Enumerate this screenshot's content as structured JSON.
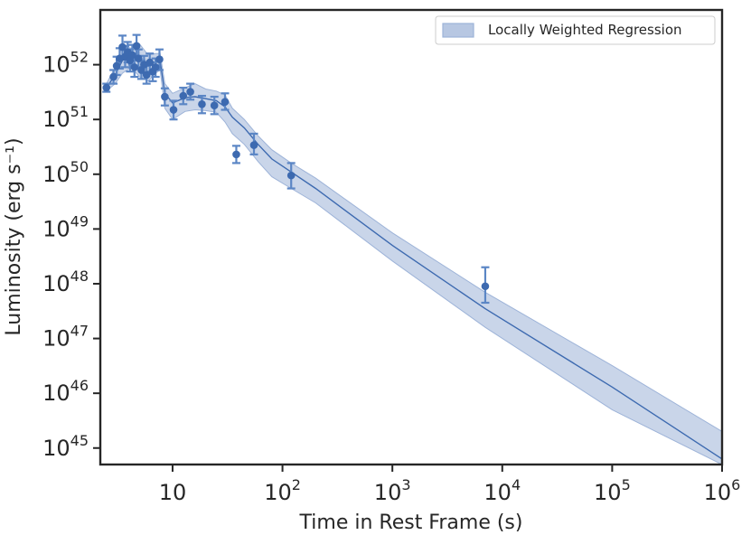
{
  "colors": {
    "line": "#3d6ab0",
    "band": "#b7c7e2",
    "band_edge": "#9db3d8",
    "errorbar": "#5b86c5",
    "axis": "#262626"
  },
  "chart_data": {
    "type": "scatter",
    "xscale": "log",
    "yscale": "log",
    "xlim": [
      2.2,
      1000000
    ],
    "ylim": [
      5e+44,
      1e+53
    ],
    "xlabel": "Time in Rest Frame (s)",
    "ylabel": "Luminosity (erg s⁻¹)",
    "legend": {
      "label": "Locally Weighted Regression",
      "position": "top-right"
    },
    "x_ticks": [
      {
        "value": 10,
        "base": "10",
        "exp": ""
      },
      {
        "value": 100,
        "base": "10",
        "exp": "2"
      },
      {
        "value": 1000,
        "base": "10",
        "exp": "3"
      },
      {
        "value": 10000,
        "base": "10",
        "exp": "4"
      },
      {
        "value": 100000,
        "base": "10",
        "exp": "5"
      },
      {
        "value": 1000000,
        "base": "10",
        "exp": "6"
      }
    ],
    "y_ticks": [
      {
        "value": 1e+45,
        "base": "10",
        "exp": "45"
      },
      {
        "value": 1e+46,
        "base": "10",
        "exp": "46"
      },
      {
        "value": 1e+47,
        "base": "10",
        "exp": "47"
      },
      {
        "value": 1e+48,
        "base": "10",
        "exp": "48"
      },
      {
        "value": 1e+49,
        "base": "10",
        "exp": "49"
      },
      {
        "value": 1e+50,
        "base": "10",
        "exp": "50"
      },
      {
        "value": 1e+51,
        "base": "10",
        "exp": "51"
      },
      {
        "value": 1e+52,
        "base": "10",
        "exp": "52"
      }
    ],
    "points": [
      {
        "x": 2.5,
        "y": 3.8e+51,
        "err_lo": 3.2e+51,
        "err_hi": 4.5e+51
      },
      {
        "x": 2.9,
        "y": 6e+51,
        "err_lo": 4.5e+51,
        "err_hi": 8e+51
      },
      {
        "x": 3.1,
        "y": 9.5e+51,
        "err_lo": 6.5e+51,
        "err_hi": 1.4e+52
      },
      {
        "x": 3.3,
        "y": 1.3e+52,
        "err_lo": 8.5e+51,
        "err_hi": 2e+52
      },
      {
        "x": 3.5,
        "y": 2.1e+52,
        "err_lo": 1.3e+52,
        "err_hi": 3.4e+52
      },
      {
        "x": 3.7,
        "y": 1.4e+52,
        "err_lo": 9e+51,
        "err_hi": 2.2e+52
      },
      {
        "x": 3.9,
        "y": 1.7e+52,
        "err_lo": 1.1e+52,
        "err_hi": 2.6e+52
      },
      {
        "x": 4.1,
        "y": 1.2e+52,
        "err_lo": 7.5e+51,
        "err_hi": 1.9e+52
      },
      {
        "x": 4.3,
        "y": 1.5e+52,
        "err_lo": 1e+52,
        "err_hi": 2.3e+52
      },
      {
        "x": 4.5,
        "y": 9e+51,
        "err_lo": 6e+51,
        "err_hi": 1.35e+52
      },
      {
        "x": 4.7,
        "y": 2.2e+52,
        "err_lo": 1.4e+52,
        "err_hi": 3.5e+52
      },
      {
        "x": 4.9,
        "y": 1.3e+52,
        "err_lo": 9e+51,
        "err_hi": 1.9e+52
      },
      {
        "x": 5.2,
        "y": 8e+51,
        "err_lo": 5.5e+51,
        "err_hi": 1.2e+52
      },
      {
        "x": 5.5,
        "y": 1e+52,
        "err_lo": 7e+51,
        "err_hi": 1.45e+52
      },
      {
        "x": 5.8,
        "y": 6.5e+51,
        "err_lo": 4.5e+51,
        "err_hi": 9.5e+51
      },
      {
        "x": 6.2,
        "y": 1.1e+52,
        "err_lo": 7.5e+51,
        "err_hi": 1.6e+52
      },
      {
        "x": 6.6,
        "y": 7.5e+51,
        "err_lo": 5e+51,
        "err_hi": 1.1e+52
      },
      {
        "x": 7.0,
        "y": 9e+51,
        "err_lo": 6e+51,
        "err_hi": 1.3e+52
      },
      {
        "x": 7.6,
        "y": 1.25e+52,
        "err_lo": 8e+51,
        "err_hi": 1.9e+52
      },
      {
        "x": 8.5,
        "y": 2.6e+51,
        "err_lo": 1.8e+51,
        "err_hi": 3.7e+51
      },
      {
        "x": 10.2,
        "y": 1.5e+51,
        "err_lo": 1e+51,
        "err_hi": 2.2e+51
      },
      {
        "x": 12.5,
        "y": 2.7e+51,
        "err_lo": 1.9e+51,
        "err_hi": 3.8e+51
      },
      {
        "x": 14.5,
        "y": 3.2e+51,
        "err_lo": 2.3e+51,
        "err_hi": 4.5e+51
      },
      {
        "x": 18.5,
        "y": 1.9e+51,
        "err_lo": 1.3e+51,
        "err_hi": 2.7e+51
      },
      {
        "x": 24,
        "y": 1.8e+51,
        "err_lo": 1.25e+51,
        "err_hi": 2.6e+51
      },
      {
        "x": 30,
        "y": 2.1e+51,
        "err_lo": 1.5e+51,
        "err_hi": 3e+51
      },
      {
        "x": 38,
        "y": 2.3e+50,
        "err_lo": 1.6e+50,
        "err_hi": 3.3e+50
      },
      {
        "x": 55,
        "y": 3.4e+50,
        "err_lo": 2.3e+50,
        "err_hi": 5.5e+50
      },
      {
        "x": 120,
        "y": 9.5e+49,
        "err_lo": 5.5e+49,
        "err_hi": 1.6e+50
      },
      {
        "x": 7000,
        "y": 9e+47,
        "err_lo": 4.5e+47,
        "err_hi": 2e+48
      }
    ],
    "fit_line": [
      {
        "x": 2.5,
        "y": 3.8e+51
      },
      {
        "x": 3.0,
        "y": 6.5e+51
      },
      {
        "x": 3.5,
        "y": 1.2e+52
      },
      {
        "x": 4.2,
        "y": 1.4e+52
      },
      {
        "x": 5.0,
        "y": 1.25e+52
      },
      {
        "x": 6.0,
        "y": 1.05e+52
      },
      {
        "x": 7.0,
        "y": 1.1e+52
      },
      {
        "x": 7.7,
        "y": 1.15e+52
      },
      {
        "x": 8.5,
        "y": 3e+51
      },
      {
        "x": 10,
        "y": 2e+51
      },
      {
        "x": 13,
        "y": 2.5e+51
      },
      {
        "x": 16,
        "y": 2.6e+51
      },
      {
        "x": 20,
        "y": 2.4e+51
      },
      {
        "x": 25,
        "y": 2.2e+51
      },
      {
        "x": 30,
        "y": 1.7e+51
      },
      {
        "x": 35,
        "y": 1.1e+51
      },
      {
        "x": 45,
        "y": 7e+50
      },
      {
        "x": 60,
        "y": 3.5e+50
      },
      {
        "x": 80,
        "y": 1.9e+50
      },
      {
        "x": 120,
        "y": 1.1e+50
      },
      {
        "x": 200,
        "y": 5.5e+49
      },
      {
        "x": 1000,
        "y": 5e+48
      },
      {
        "x": 7000,
        "y": 3.5e+47
      },
      {
        "x": 100000,
        "y": 1.3e+46
      },
      {
        "x": 1000000,
        "y": 6.3e+44
      }
    ],
    "band_upper": [
      {
        "x": 2.5,
        "y": 4.5e+51
      },
      {
        "x": 3.0,
        "y": 9e+51
      },
      {
        "x": 3.5,
        "y": 2.2e+52
      },
      {
        "x": 4.2,
        "y": 2e+52
      },
      {
        "x": 5.0,
        "y": 2.4e+52
      },
      {
        "x": 6.0,
        "y": 1.5e+52
      },
      {
        "x": 7.0,
        "y": 1.6e+52
      },
      {
        "x": 7.7,
        "y": 1.6e+52
      },
      {
        "x": 8.5,
        "y": 4.5e+51
      },
      {
        "x": 10,
        "y": 3e+51
      },
      {
        "x": 13,
        "y": 3.8e+51
      },
      {
        "x": 16,
        "y": 4.5e+51
      },
      {
        "x": 20,
        "y": 3.6e+51
      },
      {
        "x": 25,
        "y": 3.3e+51
      },
      {
        "x": 30,
        "y": 2.8e+51
      },
      {
        "x": 35,
        "y": 1.6e+51
      },
      {
        "x": 45,
        "y": 1e+51
      },
      {
        "x": 60,
        "y": 5e+50
      },
      {
        "x": 80,
        "y": 2.8e+50
      },
      {
        "x": 120,
        "y": 1.6e+50
      },
      {
        "x": 200,
        "y": 8.5e+49
      },
      {
        "x": 1000,
        "y": 8.5e+48
      },
      {
        "x": 7000,
        "y": 7e+47
      },
      {
        "x": 100000,
        "y": 3.2e+46
      },
      {
        "x": 1000000,
        "y": 2e+45
      }
    ],
    "band_lower": [
      {
        "x": 2.5,
        "y": 3.3e+51
      },
      {
        "x": 3.0,
        "y": 4.5e+51
      },
      {
        "x": 3.5,
        "y": 7e+51
      },
      {
        "x": 4.2,
        "y": 9e+51
      },
      {
        "x": 5.0,
        "y": 6e+51
      },
      {
        "x": 6.0,
        "y": 5e+51
      },
      {
        "x": 7.0,
        "y": 7e+51
      },
      {
        "x": 7.7,
        "y": 8e+51
      },
      {
        "x": 8.5,
        "y": 1.6e+51
      },
      {
        "x": 10,
        "y": 1e+51
      },
      {
        "x": 13,
        "y": 1.4e+51
      },
      {
        "x": 16,
        "y": 1.5e+51
      },
      {
        "x": 20,
        "y": 1.45e+51
      },
      {
        "x": 25,
        "y": 1.35e+51
      },
      {
        "x": 30,
        "y": 9e+50
      },
      {
        "x": 35,
        "y": 5.5e+50
      },
      {
        "x": 45,
        "y": 3.5e+50
      },
      {
        "x": 60,
        "y": 1.7e+50
      },
      {
        "x": 80,
        "y": 9e+49
      },
      {
        "x": 120,
        "y": 5.5e+49
      },
      {
        "x": 200,
        "y": 3e+49
      },
      {
        "x": 1000,
        "y": 2.6e+48
      },
      {
        "x": 7000,
        "y": 1.6e+47
      },
      {
        "x": 100000,
        "y": 5e+45
      },
      {
        "x": 1000000,
        "y": 1.9e+44
      }
    ]
  }
}
